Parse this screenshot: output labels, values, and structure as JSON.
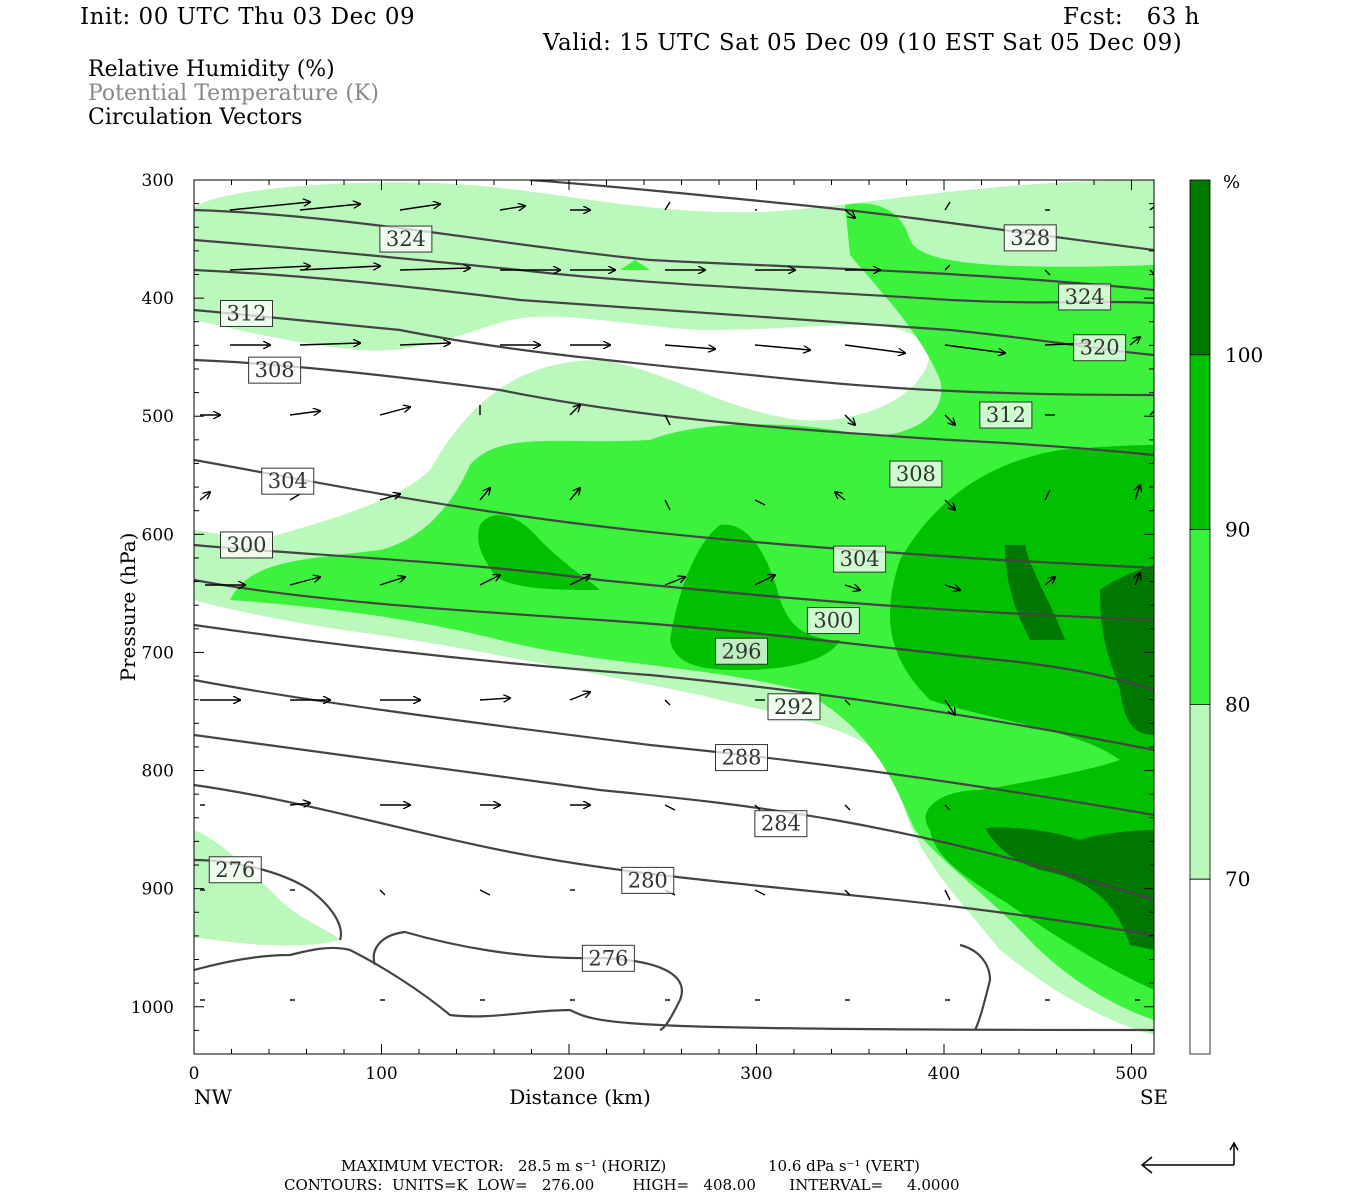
{
  "header": {
    "init": "Init: 00 UTC Thu 03 Dec 09",
    "fcst": "Fcst:   63 h",
    "valid": "Valid: 15 UTC Sat 05 Dec 09 (10 EST Sat 05 Dec 09)"
  },
  "legend": {
    "line1": "Relative Humidity (%)",
    "line2": "Potential Temperature (K)",
    "line3": "Circulation Vectors",
    "line2_color": "#888888"
  },
  "footer": {
    "max_label": "MAXIMUM VECTOR:",
    "max_horiz": "28.5 m s⁻¹ (HORIZ)",
    "max_vert": "10.6 dPa s⁻¹ (VERT)",
    "contours": "CONTOURS:  UNITS=K  LOW=   276.00        HIGH=   408.00       INTERVAL=     4.0000"
  },
  "chart_data": {
    "type": "cross-section",
    "xlabel": "Distance (km)",
    "ylabel": "Pressure (hPa)",
    "x_ticks": [
      "0",
      "100",
      "200",
      "300",
      "400",
      "500"
    ],
    "y_ticks": [
      "300",
      "400",
      "500",
      "600",
      "700",
      "800",
      "900",
      "1000"
    ],
    "xlim": [
      0,
      512
    ],
    "ylim": [
      300,
      1040
    ],
    "left_end": "NW",
    "right_end": "SE",
    "colorbar": {
      "unit": "%",
      "levels": [
        "70",
        "80",
        "90",
        "100"
      ],
      "colors": [
        "#ffffff",
        "#bbf8bb",
        "#3df23d",
        "#00c000",
        "#007800"
      ]
    },
    "theta_labels": [
      {
        "value": "324",
        "x": 113,
        "p": 350
      },
      {
        "value": "328",
        "x": 446,
        "p": 349
      },
      {
        "value": "324",
        "x": 475,
        "p": 399
      },
      {
        "value": "320",
        "x": 483,
        "p": 442
      },
      {
        "value": "312",
        "x": 28,
        "p": 413
      },
      {
        "value": "308",
        "x": 43,
        "p": 461
      },
      {
        "value": "312",
        "x": 433,
        "p": 499
      },
      {
        "value": "308",
        "x": 385,
        "p": 549
      },
      {
        "value": "304",
        "x": 50,
        "p": 555
      },
      {
        "value": "300",
        "x": 28,
        "p": 609
      },
      {
        "value": "304",
        "x": 355,
        "p": 621
      },
      {
        "value": "300",
        "x": 341,
        "p": 673
      },
      {
        "value": "296",
        "x": 292,
        "p": 699
      },
      {
        "value": "292",
        "x": 320,
        "p": 746
      },
      {
        "value": "288",
        "x": 292,
        "p": 789
      },
      {
        "value": "284",
        "x": 313,
        "p": 845
      },
      {
        "value": "280",
        "x": 242,
        "p": 893
      },
      {
        "value": "276",
        "x": 22,
        "p": 884
      },
      {
        "value": "276",
        "x": 221,
        "p": 959
      }
    ]
  }
}
